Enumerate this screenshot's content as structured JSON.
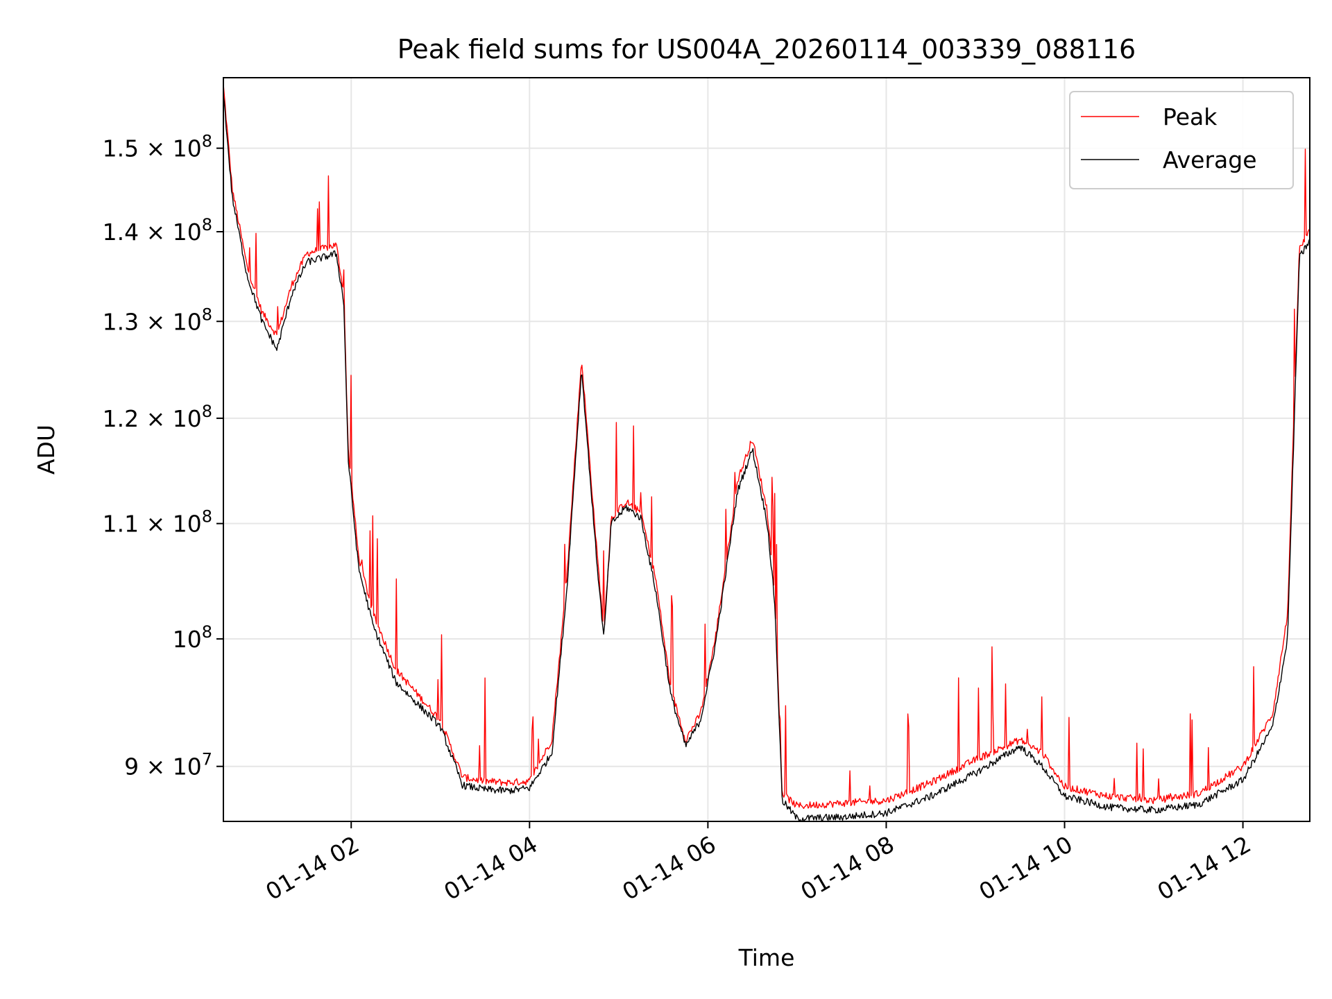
{
  "chart_data": {
    "type": "line",
    "title": "Peak field sums for US004A_20260114_003339_088116",
    "xlabel": "Time",
    "ylabel": "ADU",
    "y_scale": "log",
    "ylim": [
      86000000,
      159000000
    ],
    "xlim": [
      "2026-01-14 00:34",
      "2026-01-14 12:45"
    ],
    "x_ticks": [
      "01-14 02",
      "01-14 04",
      "01-14 06",
      "01-14 08",
      "01-14 10",
      "01-14 12"
    ],
    "y_ticks": [
      {
        "value": 90000000,
        "mantissa": "9",
        "exp": "7"
      },
      {
        "value": 100000000,
        "mantissa": "",
        "exp": "8"
      },
      {
        "value": 110000000,
        "mantissa": "1.1",
        "exp": "8"
      },
      {
        "value": 120000000,
        "mantissa": "1.2",
        "exp": "8"
      },
      {
        "value": 130000000,
        "mantissa": "1.3",
        "exp": "8"
      },
      {
        "value": 140000000,
        "mantissa": "1.4",
        "exp": "8"
      },
      {
        "value": 150000000,
        "mantissa": "1.5",
        "exp": "8"
      }
    ],
    "grid": true,
    "legend_position": "top-right",
    "series": [
      {
        "name": "Peak",
        "color": "#ff0000",
        "x": [
          "00:34",
          "00:40",
          "00:50",
          "01:00",
          "01:10",
          "01:20",
          "01:30",
          "01:40",
          "01:50",
          "01:55",
          "01:58",
          "02:05",
          "02:15",
          "02:20",
          "02:30",
          "03:00",
          "03:15",
          "03:30",
          "03:45",
          "04:00",
          "04:15",
          "04:25",
          "04:35",
          "04:45",
          "04:50",
          "04:55",
          "05:05",
          "05:15",
          "05:25",
          "05:35",
          "05:45",
          "05:55",
          "06:05",
          "06:20",
          "06:30",
          "06:40",
          "06:45",
          "06:50",
          "07:00",
          "07:30",
          "08:00",
          "08:30",
          "09:00",
          "09:30",
          "09:45",
          "10:00",
          "10:30",
          "11:00",
          "11:30",
          "12:00",
          "12:20",
          "12:30",
          "12:38",
          "12:45"
        ],
        "y": [
          158000000,
          145000000,
          136000000,
          131000000,
          128500000,
          134000000,
          137500000,
          138000000,
          138500000,
          133000000,
          117000000,
          107000000,
          102000000,
          100500000,
          97500000,
          93500000,
          89200000,
          88900000,
          88800000,
          88900000,
          92000000,
          105000000,
          126000000,
          108000000,
          100500000,
          110500000,
          112000000,
          111000000,
          105000000,
          96000000,
          92000000,
          94000000,
          100000000,
          114000000,
          118000000,
          111000000,
          104000000,
          88000000,
          87100000,
          87300000,
          87500000,
          88800000,
          90500000,
          92000000,
          91000000,
          88500000,
          87800000,
          87500000,
          88000000,
          90000000,
          94000000,
          102000000,
          138000000,
          140000000
        ]
      },
      {
        "name": "Average",
        "color": "#000000",
        "x": [
          "00:34",
          "00:40",
          "00:50",
          "01:00",
          "01:10",
          "01:20",
          "01:30",
          "01:40",
          "01:50",
          "01:55",
          "01:58",
          "02:05",
          "02:15",
          "02:20",
          "02:30",
          "03:00",
          "03:15",
          "03:30",
          "03:45",
          "04:00",
          "04:15",
          "04:25",
          "04:35",
          "04:45",
          "04:50",
          "04:55",
          "05:05",
          "05:15",
          "05:25",
          "05:35",
          "05:45",
          "05:55",
          "06:05",
          "06:20",
          "06:30",
          "06:40",
          "06:45",
          "06:50",
          "07:00",
          "07:30",
          "08:00",
          "08:30",
          "09:00",
          "09:30",
          "09:45",
          "10:00",
          "10:30",
          "11:00",
          "11:30",
          "12:00",
          "12:20",
          "12:30",
          "12:38",
          "12:45"
        ],
        "y": [
          157000000,
          144000000,
          135000000,
          130000000,
          127000000,
          133000000,
          136500000,
          137000000,
          137500000,
          132000000,
          116000000,
          106000000,
          101000000,
          99500000,
          96500000,
          93000000,
          88600000,
          88300000,
          88200000,
          88400000,
          91000000,
          104000000,
          125000000,
          107000000,
          100000000,
          110000000,
          111500000,
          110500000,
          104000000,
          95500000,
          91500000,
          93500000,
          99500000,
          113000000,
          117000000,
          110000000,
          103000000,
          87500000,
          86200000,
          86300000,
          86600000,
          87800000,
          89500000,
          91500000,
          90000000,
          87800000,
          87000000,
          86800000,
          87200000,
          89000000,
          93000000,
          100000000,
          137000000,
          139000000
        ]
      }
    ]
  }
}
